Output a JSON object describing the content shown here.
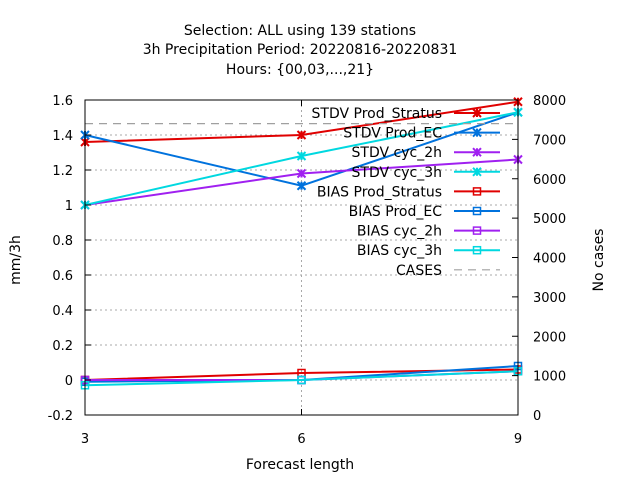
{
  "title_lines": [
    "Selection: ALL using   139 stations",
    "3h Precipitation    Period: 20220816-20220831",
    "Hours: {00,03,...,21}"
  ],
  "chart_data": {
    "type": "line",
    "x": [
      3,
      6,
      9
    ],
    "xlabel": "Forecast length",
    "ylabel": "mm/3h",
    "y2label": "No cases",
    "xlim": [
      3,
      9
    ],
    "ylim": [
      -0.2,
      1.6
    ],
    "y2lim": [
      0,
      8000
    ],
    "x_ticks": [
      "3",
      "6",
      "9"
    ],
    "y_ticks": [
      "-0.2",
      "0",
      "0.2",
      "0.4",
      "0.6",
      "0.8",
      "1",
      "1.2",
      "1.4",
      "1.6"
    ],
    "y2_ticks": [
      "0",
      "1000",
      "2000",
      "3000",
      "4000",
      "5000",
      "6000",
      "7000",
      "8000"
    ],
    "grid": true,
    "legend_position": "top-right",
    "series": [
      {
        "name": "STDV Prod_Stratus",
        "color": "#e00000",
        "marker": "cross",
        "values": [
          1.36,
          1.4,
          1.59
        ]
      },
      {
        "name": "STDV Prod_EC",
        "color": "#0072dd",
        "marker": "cross",
        "values": [
          1.4,
          1.11,
          1.53
        ]
      },
      {
        "name": "STDV cyc_2h",
        "color": "#a020f0",
        "marker": "cross",
        "values": [
          1.0,
          1.18,
          1.26
        ]
      },
      {
        "name": "STDV cyc_3h",
        "color": "#00d8e0",
        "marker": "cross",
        "values": [
          1.0,
          1.28,
          1.53
        ]
      },
      {
        "name": "BIAS Prod_Stratus",
        "color": "#e00000",
        "marker": "square",
        "values": [
          0.0,
          0.04,
          0.06
        ]
      },
      {
        "name": "BIAS Prod_EC",
        "color": "#0072dd",
        "marker": "square",
        "values": [
          -0.01,
          0.0,
          0.08
        ]
      },
      {
        "name": "BIAS cyc_2h",
        "color": "#a020f0",
        "marker": "square",
        "values": [
          0.0,
          0.0,
          0.05
        ]
      },
      {
        "name": "BIAS cyc_3h",
        "color": "#00d8e0",
        "marker": "square",
        "values": [
          -0.03,
          0.0,
          0.05
        ]
      },
      {
        "name": "CASES",
        "color": "#a0a0a0",
        "marker": "none",
        "axis": "y2",
        "values": [
          7400,
          7400,
          7400
        ]
      }
    ]
  }
}
